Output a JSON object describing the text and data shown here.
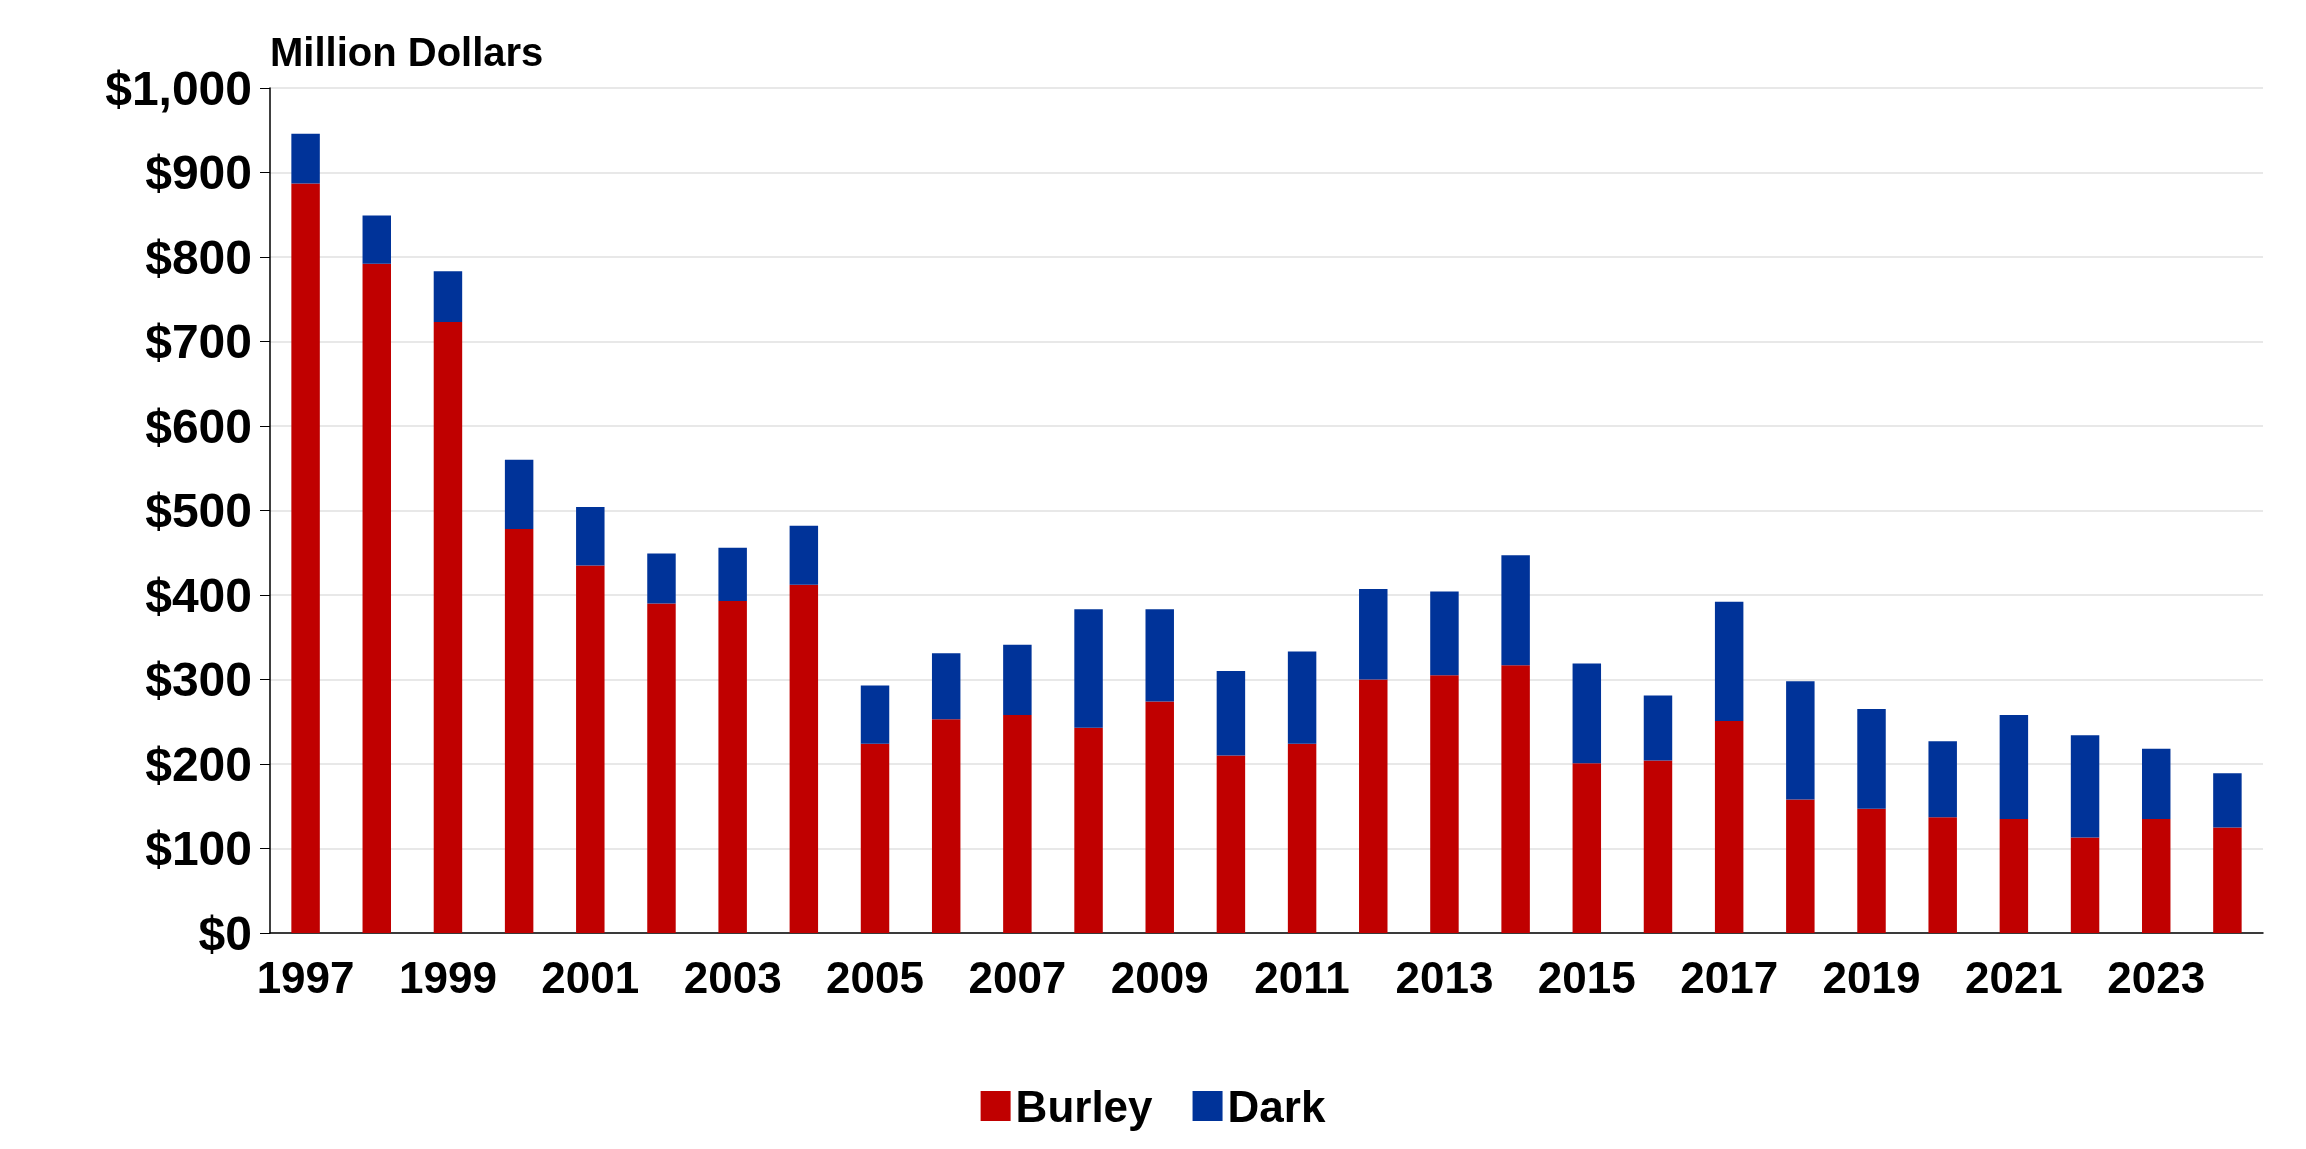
{
  "chart_data": {
    "type": "bar",
    "stacked": true,
    "ylabel": "Million Dollars",
    "categories": [
      "1997",
      null,
      "1999",
      null,
      "2001",
      null,
      "2003",
      null,
      "2005",
      null,
      "2007",
      null,
      "2009",
      null,
      "2011",
      null,
      "2013",
      null,
      "2015",
      null,
      "2017",
      null,
      "2019",
      null,
      "2021",
      null,
      "2023",
      null
    ],
    "series": [
      {
        "name": "Burley",
        "color": "#c00000",
        "values": [
          887,
          792,
          723,
          478,
          435,
          390,
          393,
          412,
          224,
          253,
          258,
          243,
          274,
          210,
          224,
          300,
          305,
          317,
          201,
          204,
          251,
          158,
          147,
          137,
          135,
          113,
          135,
          125
        ]
      },
      {
        "name": "Dark",
        "color": "#003399",
        "values": [
          59,
          57,
          60,
          82,
          69,
          59,
          63,
          70,
          69,
          78,
          83,
          140,
          109,
          100,
          109,
          107,
          99,
          130,
          118,
          77,
          141,
          140,
          118,
          90,
          123,
          121,
          83,
          64
        ]
      }
    ],
    "ylim": [
      0,
      1000
    ],
    "yticks": [
      {
        "value": 0,
        "label": "$0"
      },
      {
        "value": 100,
        "label": "$100"
      },
      {
        "value": 200,
        "label": "$200"
      },
      {
        "value": 300,
        "label": "$300"
      },
      {
        "value": 400,
        "label": "$400"
      },
      {
        "value": 500,
        "label": "$500"
      },
      {
        "value": 600,
        "label": "$600"
      },
      {
        "value": 700,
        "label": "$700"
      },
      {
        "value": 800,
        "label": "$800"
      },
      {
        "value": 900,
        "label": "$900"
      },
      {
        "value": 1000,
        "label": "$1,000"
      }
    ],
    "grid": "y",
    "legend": "bottom"
  }
}
